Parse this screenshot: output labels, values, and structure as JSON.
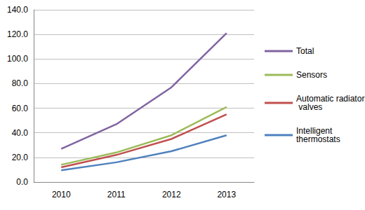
{
  "chart_data": {
    "type": "line",
    "categories": [
      "2010",
      "2011",
      "2012",
      "2013"
    ],
    "series": [
      {
        "name": "Total",
        "color": "#8064a2",
        "values": [
          27,
          47,
          77,
          121
        ]
      },
      {
        "name": "Sensors",
        "color": "#9bbb59",
        "values": [
          14,
          24,
          38,
          61
        ]
      },
      {
        "name": "Automatic radiator valves",
        "color": "#c0504d",
        "values": [
          12,
          22,
          35,
          55
        ]
      },
      {
        "name": "Intelligent thermostats",
        "color": "#4f81bd",
        "values": [
          9.5,
          16,
          25,
          38
        ]
      }
    ],
    "ylim": [
      0,
      140
    ],
    "yticks": [
      {
        "value": 0,
        "label": "0.0"
      },
      {
        "value": 20,
        "label": "20.0"
      },
      {
        "value": 40,
        "label": "40.0"
      },
      {
        "value": 60,
        "label": "60.0"
      },
      {
        "value": 80,
        "label": "80.0"
      },
      {
        "value": 100,
        "label": "100.0"
      },
      {
        "value": 120,
        "label": "120.0"
      },
      {
        "value": 140,
        "label": "140.0"
      }
    ],
    "grid": true,
    "legend": "right",
    "marker": "none"
  }
}
